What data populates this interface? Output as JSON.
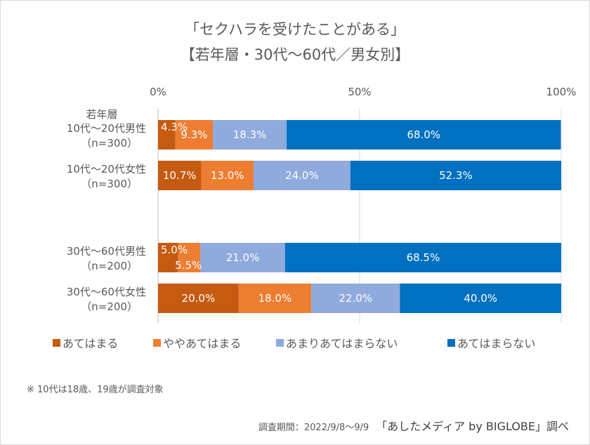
{
  "chart_data": {
    "type": "bar",
    "orientation": "horizontal",
    "stacked": "percent",
    "title": "「セクハラを受けたことがある」",
    "subtitle": "【若年層・30代～60代／男女別】",
    "xlabel": "",
    "ylabel": "",
    "xlim": [
      0,
      100
    ],
    "x_ticks": [
      "0%",
      "50%",
      "100%"
    ],
    "grid": true,
    "legend_position": "bottom",
    "group_label": "若年層",
    "categories": [
      {
        "line1": "10代～20代男性",
        "line2": "（n=300）"
      },
      {
        "line1": "10代～20代女性",
        "line2": "（n=300）"
      },
      {
        "line1": "30代～60代男性",
        "line2": "（n=200）"
      },
      {
        "line1": "30代～60代女性",
        "line2": "（n=200）"
      }
    ],
    "series": [
      {
        "name": "あてはまる",
        "color": "#C55A11",
        "values": [
          4.3,
          10.7,
          5.0,
          20.0
        ],
        "labels": [
          "4.3%",
          "10.7%",
          "5.0%",
          "20.0%"
        ]
      },
      {
        "name": "ややあてはまる",
        "color": "#ED7D31",
        "values": [
          9.3,
          13.0,
          5.5,
          18.0
        ],
        "labels": [
          "9.3%",
          "13.0%",
          "5.5%",
          "18.0%"
        ]
      },
      {
        "name": "あまりあてはまらない",
        "color": "#8FAADC",
        "values": [
          18.3,
          24.0,
          21.0,
          22.0
        ],
        "labels": [
          "18.3%",
          "24.0%",
          "21.0%",
          "22.0%"
        ]
      },
      {
        "name": "あてはまらない",
        "color": "#0070C0",
        "values": [
          68.0,
          52.3,
          68.5,
          40.0
        ],
        "labels": [
          "68.0%",
          "52.3%",
          "68.5%",
          "40.0%"
        ]
      }
    ]
  },
  "footer": {
    "note": "※ 10代は18歳、19歳が調査対象",
    "period": "調査期間：2022/9/8～9/9",
    "source": "「あしたメディア by BIGLOBE」調べ"
  }
}
